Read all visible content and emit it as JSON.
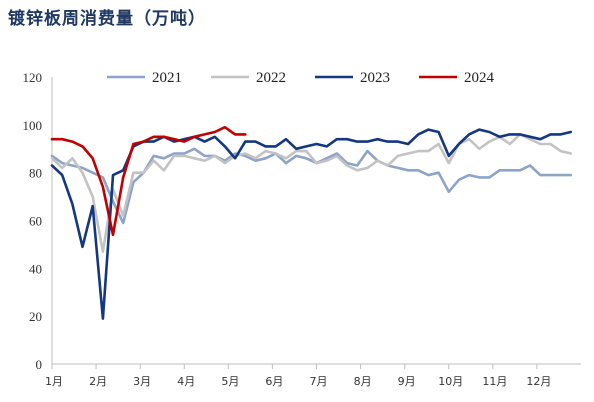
{
  "chart_data": {
    "type": "line",
    "title": "镀锌板周消费量（万吨）",
    "xlabel": "",
    "ylabel": "",
    "ylim": [
      0,
      120
    ],
    "yticks": [
      0,
      20,
      40,
      60,
      80,
      100,
      120
    ],
    "x_tick_labels": [
      "1月",
      "2月",
      "3月",
      "4月",
      "5月",
      "6月",
      "7月",
      "8月",
      "9月",
      "10月",
      "11月",
      "12月"
    ],
    "x_unit": "week of year",
    "xlim": [
      1,
      53
    ],
    "grid": false,
    "legend": {
      "position": "top-center"
    },
    "series": [
      {
        "name": "2021",
        "color": "#8da3c8",
        "x": [
          1,
          2,
          3,
          4,
          5,
          6,
          7,
          8,
          9,
          10,
          11,
          12,
          13,
          14,
          15,
          16,
          17,
          18,
          19,
          20,
          21,
          22,
          23,
          24,
          25,
          26,
          27,
          28,
          29,
          30,
          31,
          32,
          33,
          34,
          35,
          36,
          37,
          38,
          39,
          40,
          41,
          42,
          43,
          44,
          45,
          46,
          47,
          48,
          49,
          50,
          51,
          52
        ],
        "y": [
          87,
          84,
          83,
          82,
          80,
          78,
          68,
          59,
          76,
          80,
          87,
          86,
          88,
          88,
          90,
          87,
          87,
          85,
          88,
          87,
          85,
          86,
          88,
          84,
          87,
          86,
          84,
          86,
          88,
          84,
          83,
          89,
          85,
          83,
          82,
          81,
          81,
          79,
          80,
          72,
          77,
          79,
          78,
          78,
          81,
          81,
          81,
          83,
          79,
          79,
          79,
          79
        ]
      },
      {
        "name": "2022",
        "color": "#c3c3c3",
        "x": [
          1,
          2,
          3,
          4,
          5,
          6,
          7,
          8,
          9,
          10,
          11,
          12,
          13,
          14,
          15,
          16,
          17,
          18,
          19,
          20,
          21,
          22,
          23,
          24,
          25,
          26,
          27,
          28,
          29,
          30,
          31,
          32,
          33,
          34,
          35,
          36,
          37,
          38,
          39,
          40,
          41,
          42,
          43,
          44,
          45,
          46,
          47,
          48,
          49,
          50,
          51,
          52
        ],
        "y": [
          86,
          82,
          86,
          80,
          70,
          47,
          73,
          62,
          80,
          80,
          85,
          81,
          87,
          87,
          86,
          85,
          87,
          84,
          87,
          88,
          86,
          89,
          88,
          86,
          89,
          89,
          84,
          85,
          87,
          83,
          81,
          82,
          85,
          83,
          87,
          88,
          89,
          89,
          92,
          84,
          92,
          94,
          90,
          93,
          95,
          92,
          96,
          94,
          92,
          92,
          89,
          88
        ]
      },
      {
        "name": "2023",
        "color": "#14387f",
        "x": [
          1,
          2,
          3,
          4,
          5,
          6,
          7,
          8,
          9,
          10,
          11,
          12,
          13,
          14,
          15,
          16,
          17,
          18,
          19,
          20,
          21,
          22,
          23,
          24,
          25,
          26,
          27,
          28,
          29,
          30,
          31,
          32,
          33,
          34,
          35,
          36,
          37,
          38,
          39,
          40,
          41,
          42,
          43,
          44,
          45,
          46,
          47,
          48,
          49,
          50,
          51,
          52
        ],
        "y": [
          83,
          79,
          67,
          49,
          66,
          19,
          79,
          81,
          91,
          93,
          93,
          95,
          93,
          94,
          95,
          93,
          95,
          91,
          86,
          93,
          93,
          91,
          91,
          94,
          90,
          91,
          92,
          91,
          94,
          94,
          93,
          93,
          94,
          93,
          93,
          92,
          96,
          98,
          97,
          87,
          92,
          96,
          98,
          97,
          95,
          96,
          96,
          95,
          94,
          96,
          96,
          97
        ]
      },
      {
        "name": "2024",
        "color": "#c00000",
        "x": [
          1,
          2,
          3,
          4,
          5,
          6,
          7,
          8,
          9,
          10,
          11,
          12,
          13,
          14,
          15,
          16,
          17,
          18,
          19,
          20
        ],
        "y": [
          94,
          94,
          93,
          91,
          86,
          74,
          54,
          78,
          92,
          93,
          95,
          95,
          94,
          93,
          95,
          96,
          97,
          99,
          96,
          96
        ]
      }
    ]
  }
}
